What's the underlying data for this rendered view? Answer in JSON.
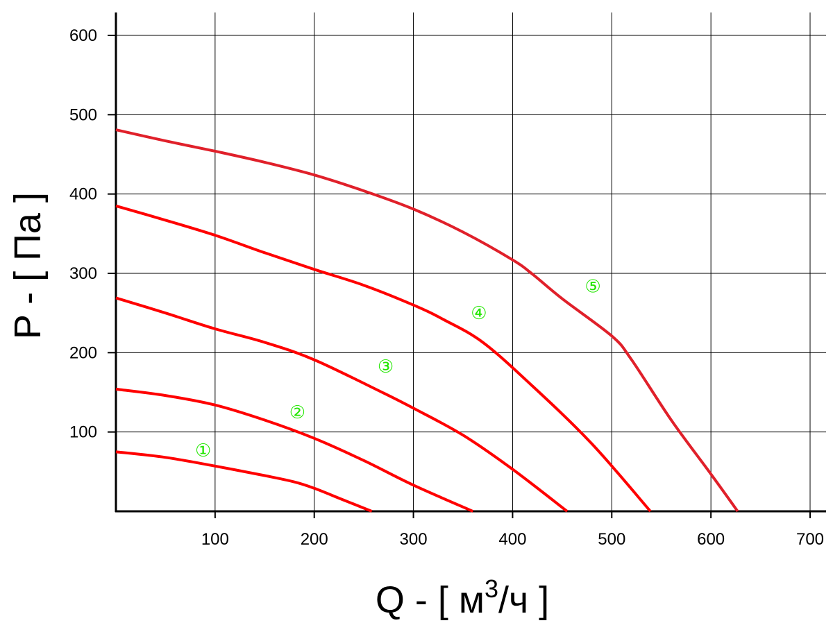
{
  "chart_data": {
    "type": "line",
    "title": "",
    "xlabel": "Q - [ м³/ч ]",
    "xlabel_parts": {
      "main": "Q - [ м",
      "sup": "3",
      "rest": "/ч ]"
    },
    "ylabel": "P - [ Па ]",
    "xlim": [
      0,
      700
    ],
    "ylim": [
      0,
      600
    ],
    "x_ticks": [
      "100",
      "200",
      "300",
      "400",
      "500",
      "600",
      "700"
    ],
    "y_ticks": [
      "100",
      "200",
      "300",
      "400",
      "500",
      "600"
    ],
    "grid": true,
    "colors": {
      "curve": "#ff0000",
      "curve5": "#e0202a",
      "label": "#22e600"
    },
    "series": [
      {
        "name": "①",
        "label_at": [
          88,
          77
        ],
        "points": [
          [
            0,
            75
          ],
          [
            50,
            68
          ],
          [
            100,
            57
          ],
          [
            150,
            45
          ],
          [
            180,
            37
          ],
          [
            200,
            29
          ],
          [
            230,
            14
          ],
          [
            258,
            0
          ]
        ]
      },
      {
        "name": "②",
        "label_at": [
          183,
          125
        ],
        "points": [
          [
            0,
            154
          ],
          [
            50,
            146
          ],
          [
            100,
            134
          ],
          [
            150,
            115
          ],
          [
            200,
            92
          ],
          [
            250,
            64
          ],
          [
            300,
            33
          ],
          [
            360,
            0
          ]
        ]
      },
      {
        "name": "③",
        "label_at": [
          272,
          183
        ],
        "points": [
          [
            0,
            269
          ],
          [
            50,
            250
          ],
          [
            100,
            230
          ],
          [
            150,
            213
          ],
          [
            200,
            191
          ],
          [
            270,
            149
          ],
          [
            300,
            130
          ],
          [
            350,
            96
          ],
          [
            400,
            53
          ],
          [
            455,
            0
          ]
        ]
      },
      {
        "name": "④",
        "label_at": [
          366,
          250
        ],
        "points": [
          [
            0,
            385
          ],
          [
            50,
            367
          ],
          [
            100,
            348
          ],
          [
            150,
            326
          ],
          [
            200,
            305
          ],
          [
            250,
            285
          ],
          [
            300,
            260
          ],
          [
            330,
            242
          ],
          [
            370,
            213
          ],
          [
            420,
            158
          ],
          [
            480,
            85
          ],
          [
            539,
            0
          ]
        ]
      },
      {
        "name": "⑤",
        "label_at": [
          481,
          284
        ],
        "points": [
          [
            0,
            481
          ],
          [
            50,
            467
          ],
          [
            100,
            454
          ],
          [
            150,
            440
          ],
          [
            200,
            424
          ],
          [
            250,
            404
          ],
          [
            300,
            381
          ],
          [
            350,
            352
          ],
          [
            400,
            317
          ],
          [
            420,
            299
          ],
          [
            450,
            268
          ],
          [
            500,
            221
          ],
          [
            520,
            191
          ],
          [
            560,
            115
          ],
          [
            600,
            47
          ],
          [
            627,
            0
          ]
        ]
      }
    ]
  }
}
